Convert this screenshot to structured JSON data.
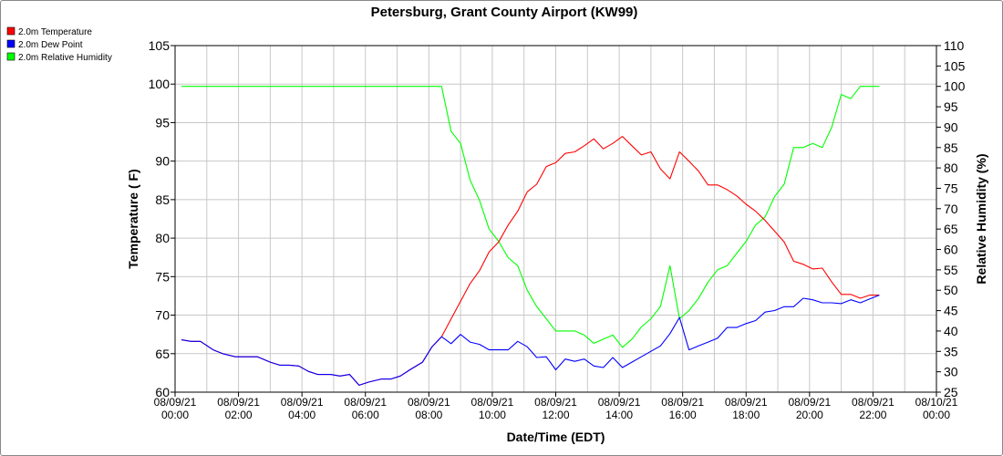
{
  "chart_data": {
    "type": "line",
    "title": "Petersburg, Grant County Airport (KW99)",
    "xlabel": "Date/Time (EDT)",
    "ylabel": "Temperature ( F)",
    "y2label": "Relative Humidity (%)",
    "xlim": [
      0,
      24
    ],
    "ylim": [
      60,
      105
    ],
    "y2lim": [
      25,
      110
    ],
    "yticks": [
      60,
      65,
      70,
      75,
      80,
      85,
      90,
      95,
      100,
      105
    ],
    "y2ticks": [
      25,
      30,
      35,
      40,
      45,
      50,
      55,
      60,
      65,
      70,
      75,
      80,
      85,
      90,
      95,
      100,
      105,
      110
    ],
    "xticks": [
      {
        "hour": 0,
        "date": "08/09/21",
        "time": "00:00"
      },
      {
        "hour": 2,
        "date": "08/09/21",
        "time": "02:00"
      },
      {
        "hour": 4,
        "date": "08/09/21",
        "time": "04:00"
      },
      {
        "hour": 6,
        "date": "08/09/21",
        "time": "06:00"
      },
      {
        "hour": 8,
        "date": "08/09/21",
        "time": "08:00"
      },
      {
        "hour": 10,
        "date": "08/09/21",
        "time": "10:00"
      },
      {
        "hour": 12,
        "date": "08/09/21",
        "time": "12:00"
      },
      {
        "hour": 14,
        "date": "08/09/21",
        "time": "14:00"
      },
      {
        "hour": 16,
        "date": "08/09/21",
        "time": "16:00"
      },
      {
        "hour": 18,
        "date": "08/09/21",
        "time": "18:00"
      },
      {
        "hour": 20,
        "date": "08/09/21",
        "time": "20:00"
      },
      {
        "hour": 22,
        "date": "08/09/21",
        "time": "22:00"
      },
      {
        "hour": 24,
        "date": "08/10/21",
        "time": "00:00"
      }
    ],
    "grid": true,
    "legend_position": "top-left",
    "series": [
      {
        "name": "2.0m Temperature",
        "color": "#ff0000",
        "axis": "left",
        "points": [
          [
            0.2,
            66.8
          ],
          [
            0.5,
            66.6
          ],
          [
            0.8,
            66.6
          ],
          [
            1.2,
            65.5
          ],
          [
            1.5,
            65.0
          ],
          [
            1.9,
            64.6
          ],
          [
            2.3,
            64.6
          ],
          [
            2.6,
            64.6
          ],
          [
            3.0,
            63.9
          ],
          [
            3.3,
            63.5
          ],
          [
            3.6,
            63.5
          ],
          [
            3.9,
            63.4
          ],
          [
            4.2,
            62.7
          ],
          [
            4.5,
            62.3
          ],
          [
            4.9,
            62.3
          ],
          [
            5.2,
            62.1
          ],
          [
            5.5,
            62.3
          ],
          [
            5.8,
            60.9
          ],
          [
            6.1,
            61.3
          ],
          [
            6.5,
            61.7
          ],
          [
            6.8,
            61.7
          ],
          [
            7.1,
            62.1
          ],
          [
            7.4,
            62.9
          ],
          [
            7.8,
            63.9
          ],
          [
            8.1,
            65.9
          ],
          [
            8.4,
            67.2
          ],
          [
            8.7,
            69.5
          ],
          [
            9.0,
            71.8
          ],
          [
            9.3,
            74.1
          ],
          [
            9.6,
            75.8
          ],
          [
            9.9,
            78.2
          ],
          [
            10.2,
            79.5
          ],
          [
            10.5,
            81.7
          ],
          [
            10.8,
            83.5
          ],
          [
            11.1,
            86.0
          ],
          [
            11.4,
            87.0
          ],
          [
            11.7,
            89.3
          ],
          [
            12.0,
            89.8
          ],
          [
            12.3,
            91.0
          ],
          [
            12.6,
            91.2
          ],
          [
            12.9,
            92.0
          ],
          [
            13.2,
            92.9
          ],
          [
            13.5,
            91.6
          ],
          [
            13.8,
            92.3
          ],
          [
            14.1,
            93.2
          ],
          [
            14.4,
            92.0
          ],
          [
            14.7,
            90.8
          ],
          [
            15.0,
            91.2
          ],
          [
            15.3,
            89.0
          ],
          [
            15.6,
            87.7
          ],
          [
            15.9,
            91.2
          ],
          [
            16.2,
            90.0
          ],
          [
            16.5,
            88.7
          ],
          [
            16.8,
            86.9
          ],
          [
            17.1,
            86.9
          ],
          [
            17.4,
            86.3
          ],
          [
            17.7,
            85.5
          ],
          [
            18.0,
            84.4
          ],
          [
            18.3,
            83.5
          ],
          [
            18.6,
            82.3
          ],
          [
            18.9,
            80.9
          ],
          [
            19.2,
            79.5
          ],
          [
            19.5,
            77.0
          ],
          [
            19.8,
            76.6
          ],
          [
            20.1,
            76.0
          ],
          [
            20.4,
            76.1
          ],
          [
            20.7,
            74.3
          ],
          [
            21.0,
            72.7
          ],
          [
            21.3,
            72.7
          ],
          [
            21.6,
            72.2
          ],
          [
            21.9,
            72.6
          ],
          [
            22.2,
            72.6
          ]
        ]
      },
      {
        "name": "2.0m Dew Point",
        "color": "#0000ff",
        "axis": "left",
        "points": [
          [
            0.2,
            66.8
          ],
          [
            0.5,
            66.6
          ],
          [
            0.8,
            66.6
          ],
          [
            1.2,
            65.5
          ],
          [
            1.5,
            65.0
          ],
          [
            1.9,
            64.6
          ],
          [
            2.3,
            64.6
          ],
          [
            2.6,
            64.6
          ],
          [
            3.0,
            63.9
          ],
          [
            3.3,
            63.5
          ],
          [
            3.6,
            63.5
          ],
          [
            3.9,
            63.4
          ],
          [
            4.2,
            62.7
          ],
          [
            4.5,
            62.3
          ],
          [
            4.9,
            62.3
          ],
          [
            5.2,
            62.1
          ],
          [
            5.5,
            62.3
          ],
          [
            5.8,
            60.9
          ],
          [
            6.1,
            61.3
          ],
          [
            6.5,
            61.7
          ],
          [
            6.8,
            61.7
          ],
          [
            7.1,
            62.1
          ],
          [
            7.4,
            62.9
          ],
          [
            7.8,
            63.9
          ],
          [
            8.1,
            65.9
          ],
          [
            8.4,
            67.2
          ],
          [
            8.7,
            66.3
          ],
          [
            9.0,
            67.5
          ],
          [
            9.3,
            66.5
          ],
          [
            9.6,
            66.2
          ],
          [
            9.9,
            65.5
          ],
          [
            10.2,
            65.5
          ],
          [
            10.5,
            65.5
          ],
          [
            10.8,
            66.6
          ],
          [
            11.1,
            65.9
          ],
          [
            11.4,
            64.5
          ],
          [
            11.7,
            64.6
          ],
          [
            12.0,
            62.9
          ],
          [
            12.3,
            64.3
          ],
          [
            12.6,
            64.0
          ],
          [
            12.9,
            64.3
          ],
          [
            13.2,
            63.4
          ],
          [
            13.5,
            63.2
          ],
          [
            13.8,
            64.5
          ],
          [
            14.1,
            63.2
          ],
          [
            14.4,
            63.9
          ],
          [
            14.7,
            64.6
          ],
          [
            15.0,
            65.3
          ],
          [
            15.3,
            66.0
          ],
          [
            15.6,
            67.6
          ],
          [
            15.9,
            69.7
          ],
          [
            16.2,
            65.5
          ],
          [
            16.5,
            66.0
          ],
          [
            16.8,
            66.5
          ],
          [
            17.1,
            67.0
          ],
          [
            17.4,
            68.4
          ],
          [
            17.7,
            68.4
          ],
          [
            18.0,
            68.9
          ],
          [
            18.3,
            69.3
          ],
          [
            18.6,
            70.4
          ],
          [
            18.9,
            70.6
          ],
          [
            19.2,
            71.1
          ],
          [
            19.5,
            71.1
          ],
          [
            19.8,
            72.2
          ],
          [
            20.1,
            72.0
          ],
          [
            20.4,
            71.6
          ],
          [
            20.7,
            71.6
          ],
          [
            21.0,
            71.5
          ],
          [
            21.3,
            72.0
          ],
          [
            21.6,
            71.6
          ],
          [
            21.9,
            72.1
          ],
          [
            22.2,
            72.6
          ]
        ]
      },
      {
        "name": "2.0m Relative Humidity",
        "color": "#00ff00",
        "axis": "right",
        "points": [
          [
            0.2,
            100
          ],
          [
            8.4,
            100
          ],
          [
            8.7,
            89
          ],
          [
            9.0,
            86
          ],
          [
            9.3,
            77
          ],
          [
            9.6,
            72
          ],
          [
            9.9,
            65
          ],
          [
            10.2,
            62
          ],
          [
            10.5,
            58
          ],
          [
            10.8,
            56
          ],
          [
            11.1,
            50
          ],
          [
            11.4,
            46
          ],
          [
            11.7,
            43
          ],
          [
            12.0,
            40
          ],
          [
            12.3,
            40
          ],
          [
            12.6,
            40
          ],
          [
            12.9,
            39
          ],
          [
            13.2,
            37
          ],
          [
            13.5,
            38
          ],
          [
            13.8,
            39
          ],
          [
            14.1,
            36
          ],
          [
            14.4,
            38
          ],
          [
            14.7,
            41
          ],
          [
            15.0,
            43
          ],
          [
            15.3,
            46
          ],
          [
            15.6,
            56
          ],
          [
            15.9,
            43
          ],
          [
            16.2,
            45
          ],
          [
            16.5,
            48
          ],
          [
            16.8,
            52
          ],
          [
            17.1,
            55
          ],
          [
            17.4,
            56
          ],
          [
            17.7,
            59
          ],
          [
            18.0,
            62
          ],
          [
            18.3,
            66
          ],
          [
            18.6,
            68
          ],
          [
            18.9,
            73
          ],
          [
            19.2,
            76
          ],
          [
            19.5,
            85
          ],
          [
            19.8,
            85
          ],
          [
            20.1,
            86
          ],
          [
            20.4,
            85
          ],
          [
            20.7,
            90
          ],
          [
            21.0,
            98
          ],
          [
            21.3,
            97
          ],
          [
            21.6,
            100
          ],
          [
            22.2,
            100
          ]
        ]
      }
    ]
  }
}
